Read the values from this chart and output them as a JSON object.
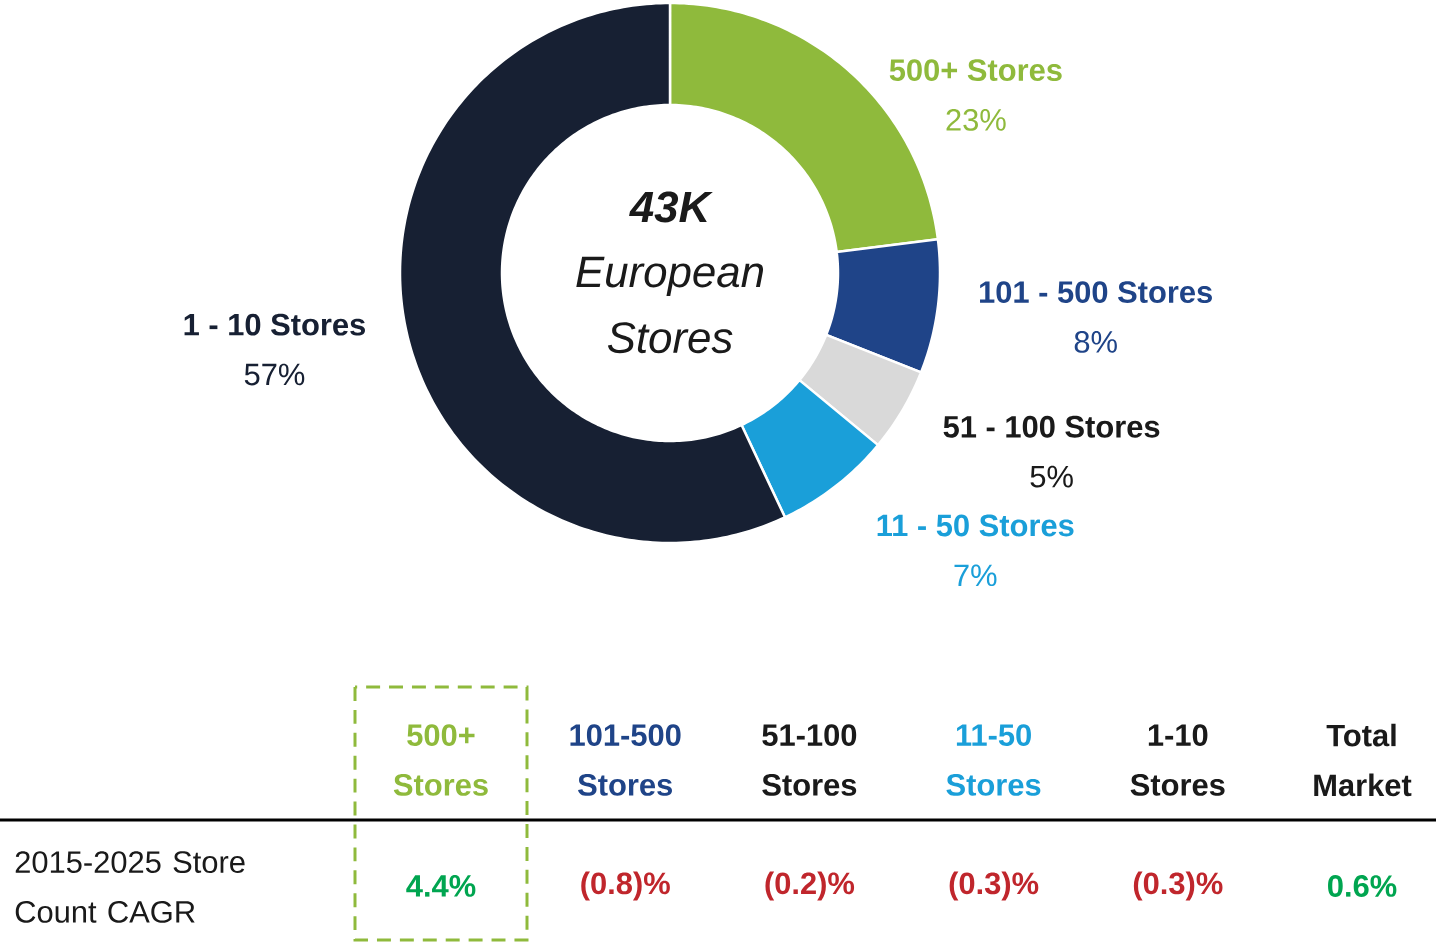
{
  "chart_data": [
    {
      "type": "donut",
      "title": "43K",
      "subtitle": "European Stores",
      "categories": [
        "500+ Stores",
        "101 - 500 Stores",
        "51 - 100 Stores",
        "11 - 50 Stores",
        "1 - 10 Stores"
      ],
      "values": [
        23,
        8,
        5,
        7,
        57
      ],
      "value_labels": [
        "23%",
        "8%",
        "5%",
        "7%",
        "57%"
      ],
      "colors": [
        "#8fba3c",
        "#1f4488",
        "#d9d9d9",
        "#1a9fd9",
        "#172033"
      ]
    },
    {
      "type": "other",
      "ylabel": "2015-2025 Store Count CAGR",
      "categories": [
        "500+ Stores",
        "101-500 Stores",
        "51-100 Stores",
        "11-50 Stores",
        "1-10 Stores",
        "Total Market"
      ],
      "values": [
        4.4,
        -0.8,
        -0.2,
        -0.3,
        -0.3,
        0.6
      ],
      "value_labels": [
        "4.4%",
        "(0.8)%",
        "(0.2)%",
        "(0.3)%",
        "(0.3)%",
        "0.6%"
      ],
      "colors": [
        "#8fba3c",
        "#1f4488",
        "#1a1a1a",
        "#1a9fd9",
        "#1a1a1a",
        "#1a1a1a"
      ]
    }
  ]
}
